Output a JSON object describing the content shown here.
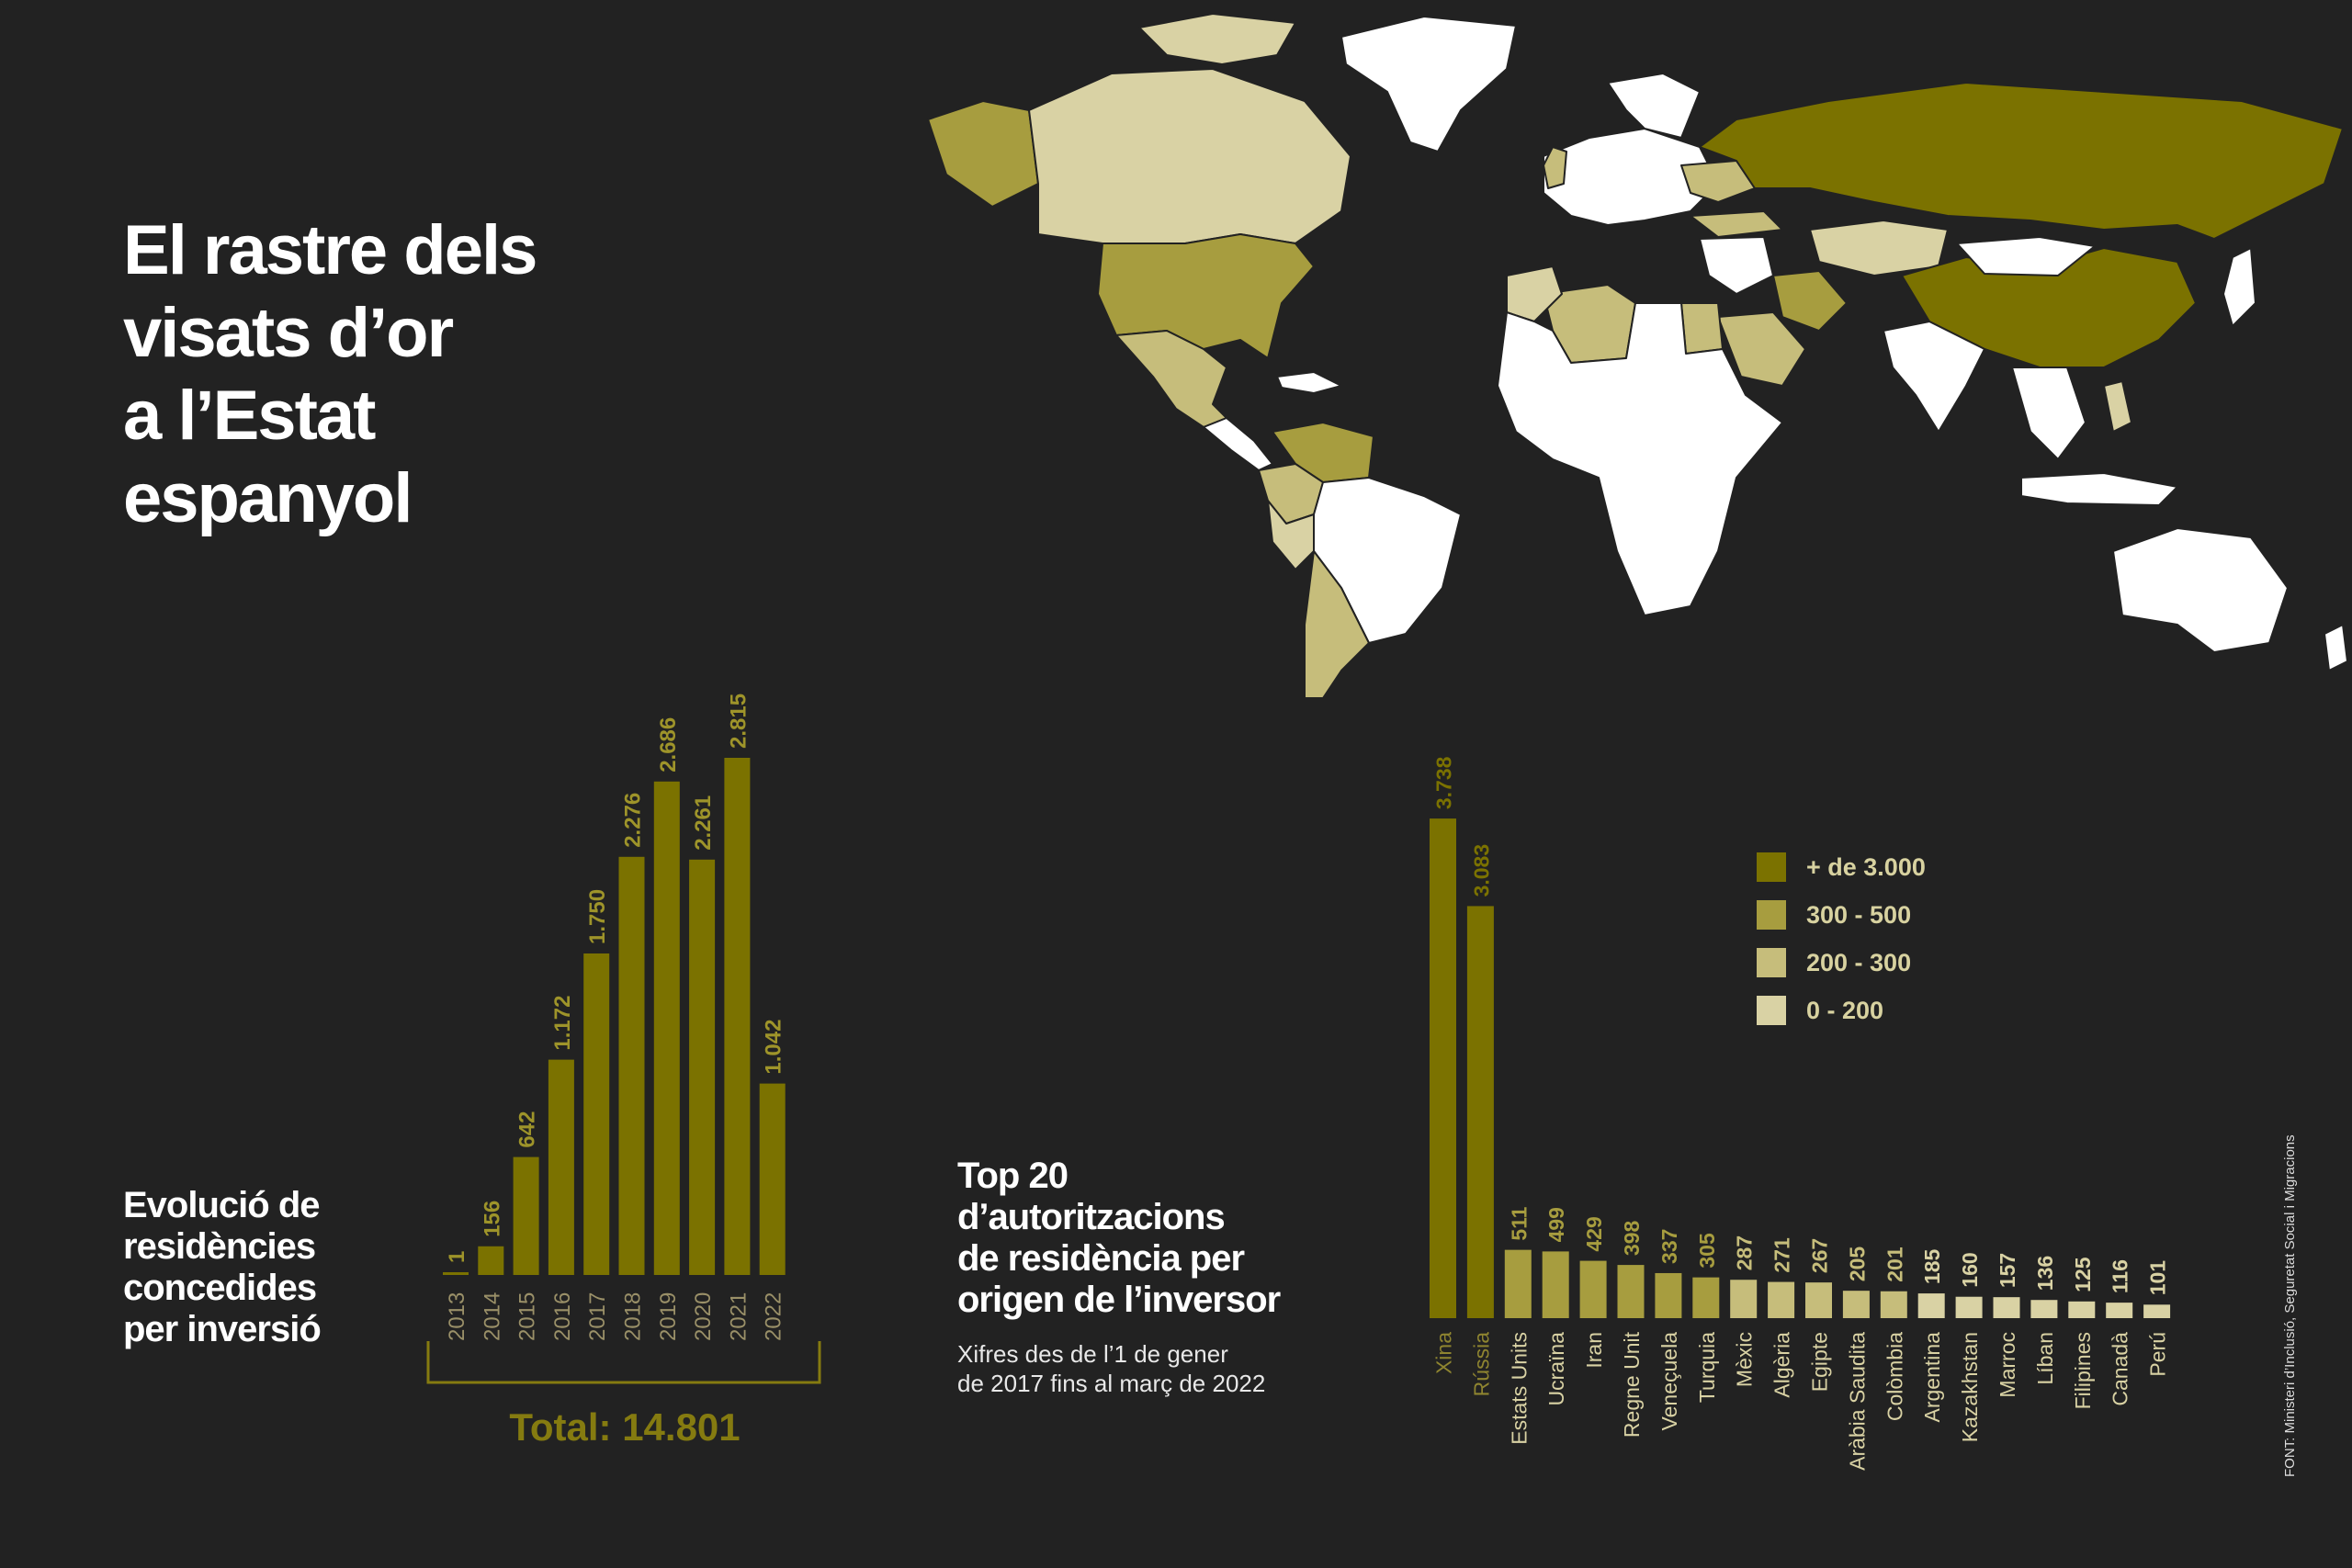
{
  "title_lines": [
    "El rastre dels",
    "visats d’or",
    "a l’Estat",
    "espanyol"
  ],
  "colors": {
    "background": "#222222",
    "bar_dark": "#7b7200",
    "bar_mid": "#a79d3f",
    "bar_light": "#c6bd7b",
    "bar_pale": "#d9d2a4",
    "land_white": "#ffffff"
  },
  "chart1": {
    "title_lines": [
      "Evolució de",
      "residències",
      "concedides",
      "per inversió"
    ],
    "total_label": "Total: 14.801"
  },
  "chart2": {
    "title_lines": [
      "Top 20",
      "d’autoritzacions",
      "de residència per",
      "origen de l’inversor"
    ],
    "subtitle_lines": [
      "Xifres des de l’1 de gener",
      "de 2017 fins al març de 2022"
    ]
  },
  "legend": {
    "items": [
      {
        "label": "+ de 3.000",
        "color": "#7b7200"
      },
      {
        "label": "300 - 500",
        "color": "#a79d3f"
      },
      {
        "label": "200 - 300",
        "color": "#c6bd7b"
      },
      {
        "label": "0 - 200",
        "color": "#d9d2a4"
      }
    ]
  },
  "source_note": "FONT: Ministeri d’Inclusió, Seguretat Social i Migracions",
  "chart_data": [
    {
      "type": "bar",
      "categories": [
        "2013",
        "2014",
        "2015",
        "2016",
        "2017",
        "2018",
        "2019",
        "2020",
        "2021",
        "2022"
      ],
      "values": [
        1,
        156,
        642,
        1172,
        1750,
        2276,
        2686,
        2261,
        2815,
        1042
      ],
      "value_labels": [
        "1",
        "156",
        "642",
        "1.172",
        "1.750",
        "2.276",
        "2.686",
        "2.261",
        "2.815",
        "1.042"
      ],
      "title": "Evolució de residències concedides per inversió",
      "ylim": [
        0,
        3000
      ]
    },
    {
      "type": "bar",
      "categories": [
        "Xina",
        "Rússia",
        "Estats Units",
        "Ucraïna",
        "Iran",
        "Regne Unit",
        "Veneçuela",
        "Turquia",
        "Mèxic",
        "Algèria",
        "Egipte",
        "Aràbia Saudita",
        "Colòmbia",
        "Argentina",
        "Kazakhstan",
        "Marroc",
        "Líban",
        "Filipines",
        "Canadà",
        "Perú"
      ],
      "values": [
        3738,
        3083,
        511,
        499,
        429,
        398,
        337,
        305,
        287,
        271,
        267,
        205,
        201,
        185,
        160,
        157,
        136,
        125,
        116,
        101
      ],
      "value_labels": [
        "3.738",
        "3.083",
        "511",
        "499",
        "429",
        "398",
        "337",
        "305",
        "287",
        "271",
        "267",
        "205",
        "201",
        "185",
        "160",
        "157",
        "136",
        "125",
        "116",
        "101"
      ],
      "title": "Top 20 d’autoritzacions de residència per origen de l’inversor",
      "ylim": [
        0,
        4000
      ]
    }
  ]
}
